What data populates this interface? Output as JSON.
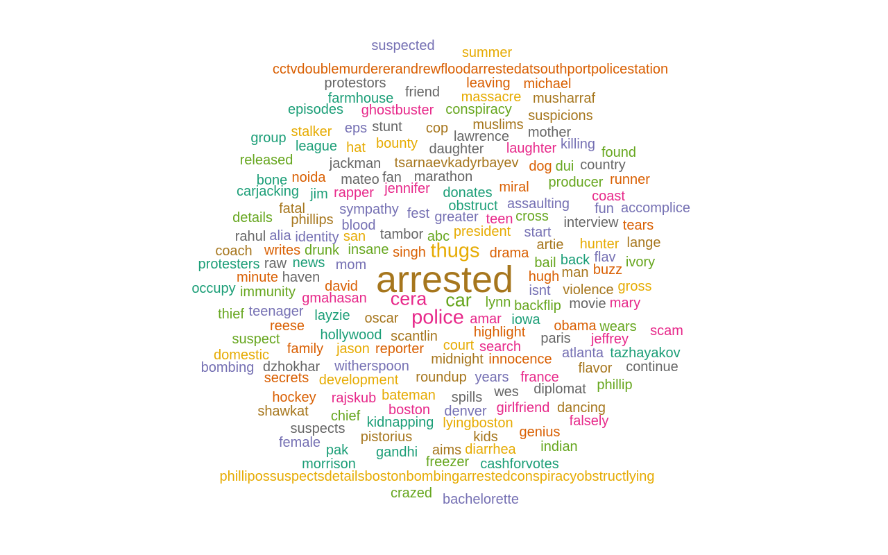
{
  "palette": {
    "teal": "#1b9e77",
    "orange": "#d95f02",
    "purple": "#7570b3",
    "magenta": "#e7298a",
    "green": "#66a61e",
    "gold": "#e6ab02",
    "brown": "#a6761d",
    "gray": "#666666"
  },
  "words": [
    {
      "text": "arrested",
      "color": "brown"
    },
    {
      "text": "police",
      "color": "magenta"
    },
    {
      "text": "thugs",
      "color": "gold"
    },
    {
      "text": "cera",
      "color": "magenta"
    },
    {
      "text": "car",
      "color": "green"
    },
    {
      "text": "suspected",
      "color": "purple"
    },
    {
      "text": "summer",
      "color": "gold"
    },
    {
      "text": "cctvdoublemurdererandrewfloodarrestedatsouthportpolicestation",
      "color": "orange"
    },
    {
      "text": "protestors",
      "color": "gray"
    },
    {
      "text": "leaving",
      "color": "orange"
    },
    {
      "text": "michael",
      "color": "orange"
    },
    {
      "text": "friend",
      "color": "gray"
    },
    {
      "text": "farmhouse",
      "color": "teal"
    },
    {
      "text": "massacre",
      "color": "gold"
    },
    {
      "text": "musharraf",
      "color": "brown"
    },
    {
      "text": "episodes",
      "color": "teal"
    },
    {
      "text": "ghostbuster",
      "color": "magenta"
    },
    {
      "text": "conspiracy",
      "color": "green"
    },
    {
      "text": "suspicions",
      "color": "brown"
    },
    {
      "text": "stunt",
      "color": "gray"
    },
    {
      "text": "muslims",
      "color": "brown"
    },
    {
      "text": "eps",
      "color": "purple"
    },
    {
      "text": "cop",
      "color": "brown"
    },
    {
      "text": "stalker",
      "color": "gold"
    },
    {
      "text": "lawrence",
      "color": "gray"
    },
    {
      "text": "mother",
      "color": "gray"
    },
    {
      "text": "group",
      "color": "teal"
    },
    {
      "text": "bounty",
      "color": "gold"
    },
    {
      "text": "league",
      "color": "teal"
    },
    {
      "text": "hat",
      "color": "gold"
    },
    {
      "text": "daughter",
      "color": "gray"
    },
    {
      "text": "laughter",
      "color": "magenta"
    },
    {
      "text": "killing",
      "color": "purple"
    },
    {
      "text": "found",
      "color": "green"
    },
    {
      "text": "released",
      "color": "green"
    },
    {
      "text": "jackman",
      "color": "gray"
    },
    {
      "text": "tsarnaevkadyrbayev",
      "color": "brown"
    },
    {
      "text": "dog",
      "color": "orange"
    },
    {
      "text": "dui",
      "color": "green"
    },
    {
      "text": "country",
      "color": "gray"
    },
    {
      "text": "bone",
      "color": "teal"
    },
    {
      "text": "noida",
      "color": "orange"
    },
    {
      "text": "mateo",
      "color": "gray"
    },
    {
      "text": "fan",
      "color": "gray"
    },
    {
      "text": "marathon",
      "color": "gray"
    },
    {
      "text": "producer",
      "color": "green"
    },
    {
      "text": "runner",
      "color": "orange"
    },
    {
      "text": "carjacking",
      "color": "teal"
    },
    {
      "text": "jim",
      "color": "teal"
    },
    {
      "text": "rapper",
      "color": "magenta"
    },
    {
      "text": "jennifer",
      "color": "magenta"
    },
    {
      "text": "donates",
      "color": "teal"
    },
    {
      "text": "miral",
      "color": "orange"
    },
    {
      "text": "coast",
      "color": "magenta"
    },
    {
      "text": "fatal",
      "color": "brown"
    },
    {
      "text": "sympathy",
      "color": "purple"
    },
    {
      "text": "obstruct",
      "color": "teal"
    },
    {
      "text": "assaulting",
      "color": "purple"
    },
    {
      "text": "fun",
      "color": "purple"
    },
    {
      "text": "accomplice",
      "color": "purple"
    },
    {
      "text": "details",
      "color": "green"
    },
    {
      "text": "phillips",
      "color": "brown"
    },
    {
      "text": "fest",
      "color": "purple"
    },
    {
      "text": "greater",
      "color": "purple"
    },
    {
      "text": "teen",
      "color": "magenta"
    },
    {
      "text": "cross",
      "color": "green"
    },
    {
      "text": "blood",
      "color": "purple"
    },
    {
      "text": "interview",
      "color": "gray"
    },
    {
      "text": "tears",
      "color": "orange"
    },
    {
      "text": "rahul",
      "color": "gray"
    },
    {
      "text": "alia",
      "color": "purple"
    },
    {
      "text": "identity",
      "color": "purple"
    },
    {
      "text": "san",
      "color": "gold"
    },
    {
      "text": "tambor",
      "color": "gray"
    },
    {
      "text": "abc",
      "color": "green"
    },
    {
      "text": "president",
      "color": "gold"
    },
    {
      "text": "start",
      "color": "purple"
    },
    {
      "text": "coach",
      "color": "brown"
    },
    {
      "text": "writes",
      "color": "orange"
    },
    {
      "text": "drunk",
      "color": "green"
    },
    {
      "text": "insane",
      "color": "green"
    },
    {
      "text": "singh",
      "color": "orange"
    },
    {
      "text": "drama",
      "color": "orange"
    },
    {
      "text": "artie",
      "color": "brown"
    },
    {
      "text": "hunter",
      "color": "gold"
    },
    {
      "text": "lange",
      "color": "brown"
    },
    {
      "text": "protesters",
      "color": "teal"
    },
    {
      "text": "raw",
      "color": "gray"
    },
    {
      "text": "news",
      "color": "teal"
    },
    {
      "text": "mom",
      "color": "purple"
    },
    {
      "text": "bail",
      "color": "green"
    },
    {
      "text": "back",
      "color": "teal"
    },
    {
      "text": "flav",
      "color": "purple"
    },
    {
      "text": "ivory",
      "color": "green"
    },
    {
      "text": "minute",
      "color": "orange"
    },
    {
      "text": "haven",
      "color": "gray"
    },
    {
      "text": "man",
      "color": "brown"
    },
    {
      "text": "buzz",
      "color": "orange"
    },
    {
      "text": "hugh",
      "color": "orange"
    },
    {
      "text": "occupy",
      "color": "teal"
    },
    {
      "text": "immunity",
      "color": "green"
    },
    {
      "text": "david",
      "color": "orange"
    },
    {
      "text": "isnt",
      "color": "purple"
    },
    {
      "text": "violence",
      "color": "brown"
    },
    {
      "text": "gross",
      "color": "gold"
    },
    {
      "text": "gmahasan",
      "color": "magenta"
    },
    {
      "text": "lynn",
      "color": "green"
    },
    {
      "text": "backflip",
      "color": "green"
    },
    {
      "text": "movie",
      "color": "gray"
    },
    {
      "text": "mary",
      "color": "magenta"
    },
    {
      "text": "thief",
      "color": "green"
    },
    {
      "text": "teenager",
      "color": "purple"
    },
    {
      "text": "layzie",
      "color": "teal"
    },
    {
      "text": "oscar",
      "color": "brown"
    },
    {
      "text": "amar",
      "color": "magenta"
    },
    {
      "text": "iowa",
      "color": "teal"
    },
    {
      "text": "reese",
      "color": "orange"
    },
    {
      "text": "obama",
      "color": "orange"
    },
    {
      "text": "wears",
      "color": "green"
    },
    {
      "text": "scam",
      "color": "magenta"
    },
    {
      "text": "hollywood",
      "color": "teal"
    },
    {
      "text": "highlight",
      "color": "orange"
    },
    {
      "text": "scantlin",
      "color": "brown"
    },
    {
      "text": "suspect",
      "color": "green"
    },
    {
      "text": "paris",
      "color": "gray"
    },
    {
      "text": "jeffrey",
      "color": "magenta"
    },
    {
      "text": "family",
      "color": "orange"
    },
    {
      "text": "jason",
      "color": "gold"
    },
    {
      "text": "reporter",
      "color": "orange"
    },
    {
      "text": "court",
      "color": "gold"
    },
    {
      "text": "search",
      "color": "magenta"
    },
    {
      "text": "atlanta",
      "color": "purple"
    },
    {
      "text": "tazhayakov",
      "color": "teal"
    },
    {
      "text": "domestic",
      "color": "gold"
    },
    {
      "text": "midnight",
      "color": "brown"
    },
    {
      "text": "innocence",
      "color": "orange"
    },
    {
      "text": "bombing",
      "color": "purple"
    },
    {
      "text": "dzhokhar",
      "color": "gray"
    },
    {
      "text": "witherspoon",
      "color": "purple"
    },
    {
      "text": "flavor",
      "color": "brown"
    },
    {
      "text": "continue",
      "color": "gray"
    },
    {
      "text": "secrets",
      "color": "orange"
    },
    {
      "text": "development",
      "color": "gold"
    },
    {
      "text": "roundup",
      "color": "brown"
    },
    {
      "text": "years",
      "color": "purple"
    },
    {
      "text": "france",
      "color": "magenta"
    },
    {
      "text": "phillip",
      "color": "green"
    },
    {
      "text": "diplomat",
      "color": "gray"
    },
    {
      "text": "hockey",
      "color": "orange"
    },
    {
      "text": "rajskub",
      "color": "magenta"
    },
    {
      "text": "bateman",
      "color": "gold"
    },
    {
      "text": "spills",
      "color": "gray"
    },
    {
      "text": "wes",
      "color": "gray"
    },
    {
      "text": "shawkat",
      "color": "brown"
    },
    {
      "text": "boston",
      "color": "magenta"
    },
    {
      "text": "denver",
      "color": "purple"
    },
    {
      "text": "girlfriend",
      "color": "magenta"
    },
    {
      "text": "dancing",
      "color": "brown"
    },
    {
      "text": "chief",
      "color": "green"
    },
    {
      "text": "kidnapping",
      "color": "teal"
    },
    {
      "text": "lyingboston",
      "color": "gold"
    },
    {
      "text": "falsely",
      "color": "magenta"
    },
    {
      "text": "suspects",
      "color": "gray"
    },
    {
      "text": "genius",
      "color": "orange"
    },
    {
      "text": "pistorius",
      "color": "brown"
    },
    {
      "text": "kids",
      "color": "brown"
    },
    {
      "text": "female",
      "color": "purple"
    },
    {
      "text": "indian",
      "color": "green"
    },
    {
      "text": "pak",
      "color": "teal"
    },
    {
      "text": "gandhi",
      "color": "teal"
    },
    {
      "text": "aims",
      "color": "brown"
    },
    {
      "text": "diarrhea",
      "color": "gold"
    },
    {
      "text": "morrison",
      "color": "teal"
    },
    {
      "text": "freezer",
      "color": "green"
    },
    {
      "text": "cashforvotes",
      "color": "teal"
    },
    {
      "text": "phillipossuspectsdetailsbostonbombingarrestedconspiracyobstructlying",
      "color": "gold"
    },
    {
      "text": "crazed",
      "color": "green"
    },
    {
      "text": "bachelorette",
      "color": "purple"
    }
  ]
}
